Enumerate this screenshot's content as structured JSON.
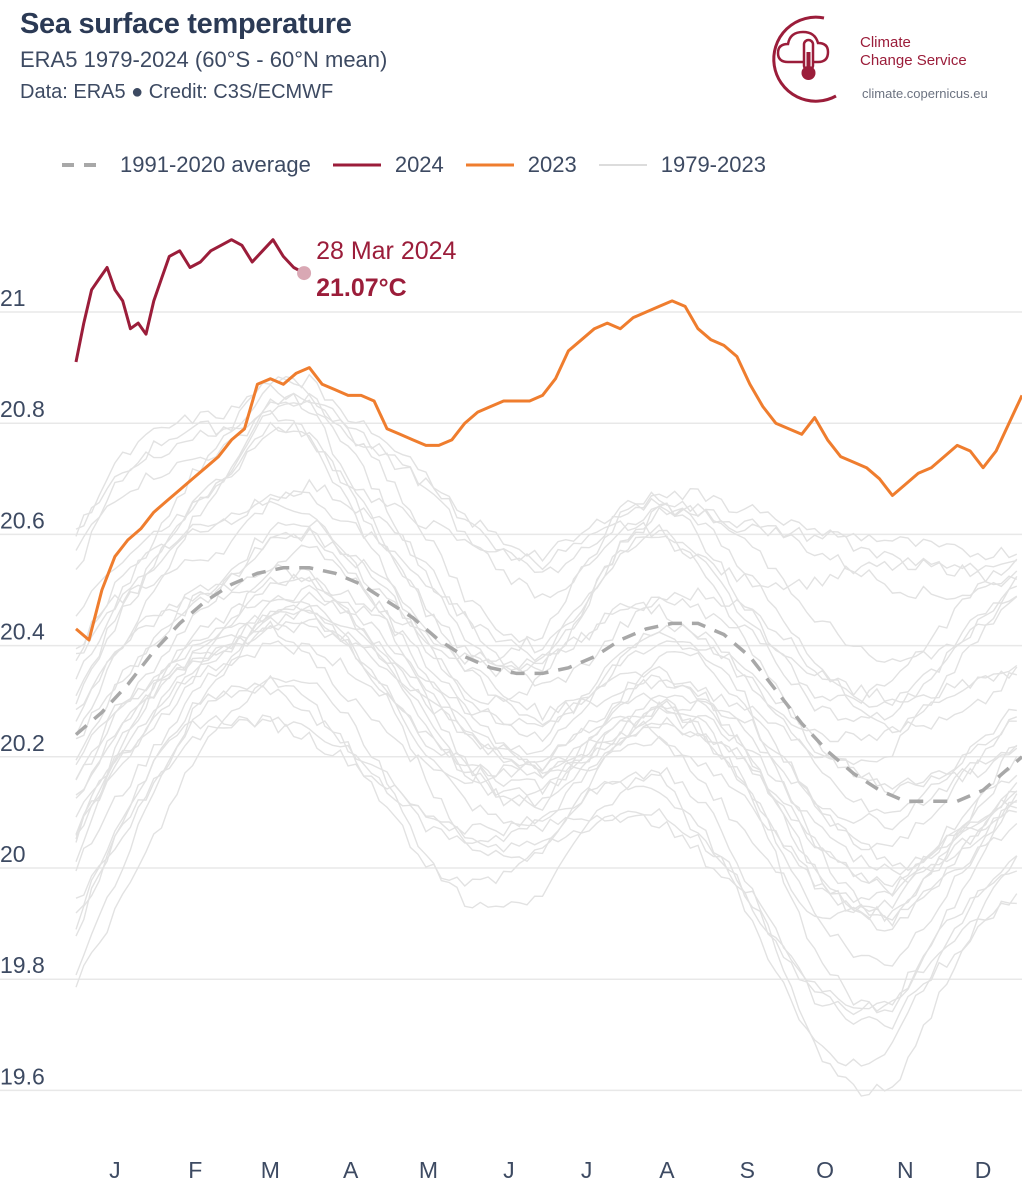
{
  "header": {
    "title": "Sea surface temperature",
    "subtitle": "ERA5 1979-2024 (60°S - 60°N mean)",
    "credit": "Data: ERA5 ● Credit: C3S/ECMWF"
  },
  "logo": {
    "line1": "Climate",
    "line2": "Change Service",
    "url": "climate.copernicus.eu",
    "icon": "cloud-thermometer-icon"
  },
  "colors": {
    "y2024": "#9b1d3a",
    "y2023": "#ef7d2e",
    "average": "#a8a8a8",
    "historic": "#e2e2e2",
    "grid": "#e8e8e8",
    "text": "#2b3a55"
  },
  "legend": [
    {
      "label": "1991-2020 average",
      "style": "dashed",
      "color": "#a8a8a8"
    },
    {
      "label": "2024",
      "style": "solid",
      "color": "#9b1d3a"
    },
    {
      "label": "2023",
      "style": "solid",
      "color": "#ef7d2e"
    },
    {
      "label": "1979-2023",
      "style": "solid",
      "color": "#e2e2e2"
    }
  ],
  "chart_data": {
    "type": "line",
    "title": "Sea surface temperature",
    "xlabel": "",
    "ylabel": "",
    "x_unit": "day of year",
    "xlim": [
      0,
      365
    ],
    "ylim": [
      19.55,
      21.2
    ],
    "yticks": [
      19.6,
      19.8,
      20,
      20.2,
      20.4,
      20.6,
      20.8,
      21
    ],
    "ytick_labels": [
      "19.6",
      "19.8",
      "20",
      "20.2",
      "20.4",
      "20.6",
      "20.8",
      "21"
    ],
    "xtick_labels": [
      "J",
      "F",
      "M",
      "A",
      "M",
      "J",
      "J",
      "A",
      "S",
      "O",
      "N",
      "D"
    ],
    "xtick_positions": [
      15,
      46,
      75,
      106,
      136,
      167,
      197,
      228,
      259,
      289,
      320,
      350
    ],
    "grid": "horizontal",
    "legend_position": "top",
    "annotation": {
      "date": "28 Mar 2024",
      "value": "21.07°C",
      "x": 88,
      "y": 21.07
    },
    "series": [
      {
        "name": "1991-2020 average",
        "style": "dashed",
        "x": [
          0,
          10,
          20,
          30,
          40,
          50,
          60,
          70,
          80,
          90,
          100,
          110,
          120,
          130,
          140,
          150,
          160,
          170,
          180,
          190,
          200,
          210,
          220,
          230,
          240,
          250,
          260,
          270,
          280,
          290,
          300,
          310,
          320,
          330,
          340,
          350,
          360,
          365
        ],
        "y": [
          20.24,
          20.28,
          20.33,
          20.39,
          20.44,
          20.48,
          20.51,
          20.53,
          20.54,
          20.54,
          20.53,
          20.51,
          20.48,
          20.45,
          20.41,
          20.38,
          20.36,
          20.35,
          20.35,
          20.36,
          20.38,
          20.41,
          20.43,
          20.44,
          20.44,
          20.42,
          20.38,
          20.32,
          20.26,
          20.21,
          20.17,
          20.14,
          20.12,
          20.12,
          20.12,
          20.14,
          20.18,
          20.2
        ]
      },
      {
        "name": "2024",
        "style": "solid",
        "x": [
          0,
          3,
          6,
          9,
          12,
          15,
          18,
          21,
          24,
          27,
          30,
          33,
          36,
          40,
          44,
          48,
          52,
          56,
          60,
          64,
          68,
          72,
          76,
          80,
          84,
          88
        ],
        "y": [
          20.91,
          20.98,
          21.04,
          21.06,
          21.08,
          21.04,
          21.02,
          20.97,
          20.98,
          20.96,
          21.02,
          21.06,
          21.1,
          21.11,
          21.08,
          21.09,
          21.11,
          21.12,
          21.13,
          21.12,
          21.09,
          21.11,
          21.13,
          21.1,
          21.08,
          21.07
        ]
      },
      {
        "name": "2023",
        "style": "solid",
        "x": [
          0,
          5,
          10,
          15,
          20,
          25,
          30,
          35,
          40,
          45,
          50,
          55,
          60,
          65,
          70,
          75,
          80,
          85,
          90,
          95,
          100,
          105,
          110,
          115,
          120,
          125,
          130,
          135,
          140,
          145,
          150,
          155,
          160,
          165,
          170,
          175,
          180,
          185,
          190,
          195,
          200,
          205,
          210,
          215,
          220,
          225,
          230,
          235,
          240,
          245,
          250,
          255,
          260,
          265,
          270,
          275,
          280,
          285,
          290,
          295,
          300,
          305,
          310,
          315,
          320,
          325,
          330,
          335,
          340,
          345,
          350,
          355,
          360,
          365
        ],
        "y": [
          20.43,
          20.41,
          20.5,
          20.56,
          20.59,
          20.61,
          20.64,
          20.66,
          20.68,
          20.7,
          20.72,
          20.74,
          20.77,
          20.79,
          20.87,
          20.88,
          20.87,
          20.89,
          20.9,
          20.87,
          20.86,
          20.85,
          20.85,
          20.84,
          20.79,
          20.78,
          20.77,
          20.76,
          20.76,
          20.77,
          20.8,
          20.82,
          20.83,
          20.84,
          20.84,
          20.84,
          20.85,
          20.88,
          20.93,
          20.95,
          20.97,
          20.98,
          20.97,
          20.99,
          21.0,
          21.01,
          21.02,
          21.01,
          20.97,
          20.95,
          20.94,
          20.92,
          20.87,
          20.83,
          20.8,
          20.79,
          20.78,
          20.81,
          20.77,
          20.74,
          20.73,
          20.72,
          20.7,
          20.67,
          20.69,
          20.71,
          20.72,
          20.74,
          20.76,
          20.75,
          20.72,
          20.75,
          20.8,
          20.85
        ]
      }
    ],
    "historic_band": {
      "name": "1979-2023",
      "x": [
        0,
        15,
        30,
        45,
        60,
        75,
        90,
        105,
        120,
        135,
        150,
        165,
        180,
        195,
        210,
        225,
        240,
        255,
        270,
        285,
        300,
        315,
        330,
        345,
        360,
        365
      ],
      "low": [
        19.82,
        19.95,
        20.05,
        20.15,
        20.2,
        20.24,
        20.25,
        20.22,
        20.15,
        20.05,
        19.98,
        19.95,
        19.95,
        20.0,
        20.05,
        20.08,
        20.05,
        19.98,
        19.85,
        19.7,
        19.62,
        19.6,
        19.7,
        19.8,
        19.9,
        19.92
      ],
      "high": [
        20.55,
        20.68,
        20.76,
        20.82,
        20.86,
        20.93,
        20.9,
        20.8,
        20.72,
        20.65,
        20.58,
        20.55,
        20.55,
        20.62,
        20.7,
        20.72,
        20.68,
        20.62,
        20.58,
        20.55,
        20.55,
        20.56,
        20.58,
        20.6,
        20.62,
        20.62
      ]
    }
  }
}
